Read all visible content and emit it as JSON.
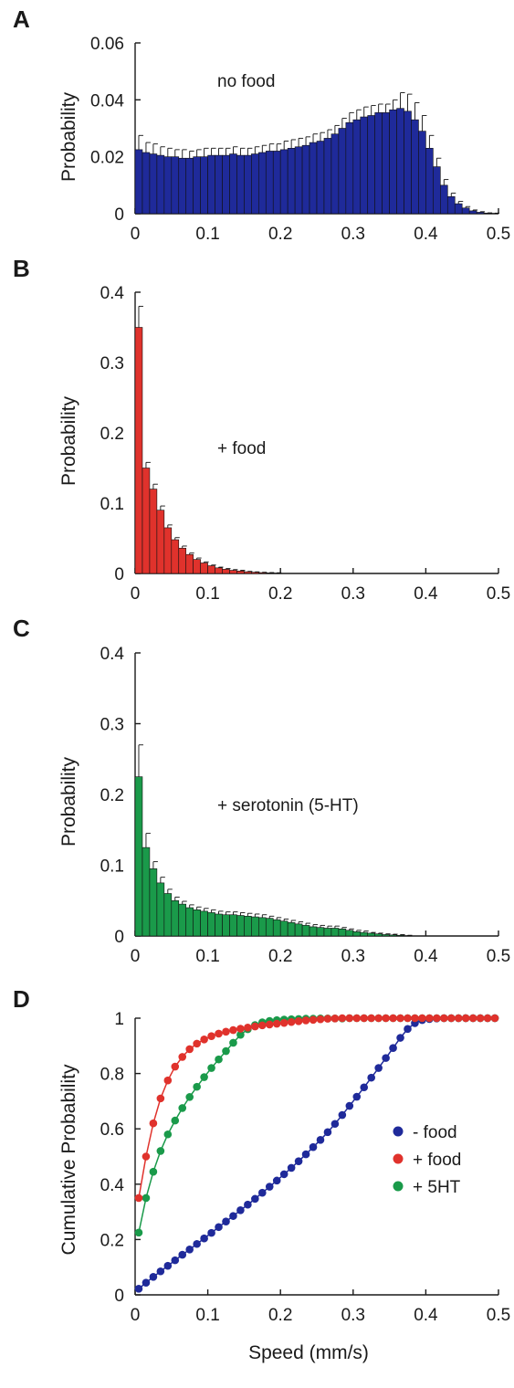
{
  "figure": {
    "xlabel": "Speed (mm/s)"
  },
  "chart_data": [
    {
      "panel": "A",
      "type": "bar",
      "annotation": "no food",
      "ylabel": "Probability",
      "xlabel": "",
      "xlim": [
        0,
        0.5
      ],
      "ylim": [
        0,
        0.06
      ],
      "xticks": [
        "0",
        "0.1",
        "0.2",
        "0.3",
        "0.4",
        "0.5"
      ],
      "yticks": [
        "0",
        "0.02",
        "0.04",
        "0.06"
      ],
      "bin_width": 0.01,
      "color": "#1f2a9a",
      "values": [
        0.0225,
        0.0215,
        0.021,
        0.0205,
        0.02,
        0.02,
        0.0195,
        0.0195,
        0.02,
        0.02,
        0.0205,
        0.0205,
        0.0205,
        0.021,
        0.0205,
        0.0205,
        0.021,
        0.0215,
        0.022,
        0.022,
        0.0225,
        0.023,
        0.0235,
        0.024,
        0.025,
        0.0255,
        0.0265,
        0.028,
        0.03,
        0.032,
        0.033,
        0.034,
        0.0345,
        0.0355,
        0.0355,
        0.0365,
        0.037,
        0.036,
        0.033,
        0.029,
        0.023,
        0.0165,
        0.01,
        0.006,
        0.0035,
        0.002,
        0.001,
        0.0005,
        0.0002,
        0.0001
      ],
      "errors": [
        0.005,
        0.0035,
        0.0035,
        0.003,
        0.003,
        0.0025,
        0.003,
        0.0025,
        0.0025,
        0.003,
        0.0025,
        0.0025,
        0.0025,
        0.0025,
        0.0025,
        0.0025,
        0.0025,
        0.0025,
        0.0025,
        0.0025,
        0.003,
        0.003,
        0.003,
        0.003,
        0.003,
        0.003,
        0.003,
        0.003,
        0.0035,
        0.0035,
        0.0035,
        0.0035,
        0.0035,
        0.003,
        0.003,
        0.0035,
        0.0055,
        0.006,
        0.006,
        0.0055,
        0.0045,
        0.003,
        0.002,
        0.0012,
        0.0008,
        0.0005,
        0.0003,
        0.0002,
        0.0001,
        0.0001
      ]
    },
    {
      "panel": "B",
      "type": "bar",
      "annotation": "+ food",
      "ylabel": "Probability",
      "xlabel": "",
      "xlim": [
        0,
        0.5
      ],
      "ylim": [
        0,
        0.4
      ],
      "xticks": [
        "0",
        "0.1",
        "0.2",
        "0.3",
        "0.4",
        "0.5"
      ],
      "yticks": [
        "0",
        "0.1",
        "0.2",
        "0.3",
        "0.4"
      ],
      "bin_width": 0.01,
      "color": "#e0322c",
      "values": [
        0.35,
        0.15,
        0.12,
        0.09,
        0.065,
        0.048,
        0.036,
        0.027,
        0.02,
        0.015,
        0.011,
        0.008,
        0.006,
        0.0045,
        0.0035,
        0.0025,
        0.0018,
        0.0012,
        0.0008,
        0.0005,
        0,
        0,
        0,
        0,
        0,
        0,
        0,
        0,
        0,
        0,
        0,
        0,
        0,
        0,
        0,
        0,
        0,
        0,
        0,
        0,
        0,
        0,
        0,
        0,
        0,
        0,
        0,
        0,
        0,
        0
      ],
      "errors": [
        0.03,
        0.008,
        0.007,
        0.006,
        0.004,
        0.003,
        0.003,
        0.002,
        0.002,
        0.0015,
        0.001,
        0.001,
        0.001,
        0.001,
        0.001,
        0.0005,
        0.0005,
        0.0005,
        0.0005,
        0.0005,
        0,
        0,
        0,
        0,
        0,
        0,
        0,
        0,
        0,
        0,
        0,
        0,
        0,
        0,
        0,
        0,
        0,
        0,
        0,
        0,
        0,
        0,
        0,
        0,
        0,
        0,
        0,
        0,
        0,
        0
      ]
    },
    {
      "panel": "C",
      "type": "bar",
      "annotation": "+ serotonin (5-HT)",
      "ylabel": "Probability",
      "xlabel": "",
      "xlim": [
        0,
        0.5
      ],
      "ylim": [
        0,
        0.4
      ],
      "xticks": [
        "0",
        "0.1",
        "0.2",
        "0.3",
        "0.4",
        "0.5"
      ],
      "yticks": [
        "0",
        "0.1",
        "0.2",
        "0.3",
        "0.4"
      ],
      "bin_width": 0.01,
      "color": "#1a9a4a",
      "values": [
        0.225,
        0.125,
        0.095,
        0.075,
        0.06,
        0.05,
        0.045,
        0.04,
        0.037,
        0.035,
        0.033,
        0.031,
        0.03,
        0.03,
        0.029,
        0.028,
        0.027,
        0.026,
        0.025,
        0.023,
        0.021,
        0.019,
        0.017,
        0.015,
        0.013,
        0.012,
        0.011,
        0.011,
        0.01,
        0.008,
        0.006,
        0.005,
        0.004,
        0.003,
        0.002,
        0.0015,
        0.001,
        0.0005,
        0,
        0,
        0,
        0,
        0,
        0,
        0,
        0,
        0,
        0,
        0,
        0
      ],
      "errors": [
        0.045,
        0.02,
        0.01,
        0.008,
        0.006,
        0.005,
        0.004,
        0.004,
        0.004,
        0.004,
        0.004,
        0.004,
        0.004,
        0.004,
        0.004,
        0.004,
        0.004,
        0.004,
        0.003,
        0.003,
        0.003,
        0.003,
        0.003,
        0.003,
        0.003,
        0.003,
        0.003,
        0.003,
        0.002,
        0.002,
        0.002,
        0.002,
        0.001,
        0.001,
        0.001,
        0.001,
        0.001,
        0.0005,
        0,
        0,
        0,
        0,
        0,
        0,
        0,
        0,
        0,
        0,
        0,
        0
      ]
    },
    {
      "panel": "D",
      "type": "line",
      "ylabel": "Cumulative Probability",
      "xlabel": "Speed (mm/s)",
      "xlim": [
        0,
        0.5
      ],
      "ylim": [
        0,
        1
      ],
      "xticks": [
        "0",
        "0.1",
        "0.2",
        "0.3",
        "0.4",
        "0.5"
      ],
      "yticks": [
        "0",
        "0.2",
        "0.4",
        "0.6",
        "0.8",
        "1"
      ],
      "legend_position": "right",
      "x": [
        0.005,
        0.015,
        0.025,
        0.035,
        0.045,
        0.055,
        0.065,
        0.075,
        0.085,
        0.095,
        0.105,
        0.115,
        0.125,
        0.135,
        0.145,
        0.155,
        0.165,
        0.175,
        0.185,
        0.195,
        0.205,
        0.215,
        0.225,
        0.235,
        0.245,
        0.255,
        0.265,
        0.275,
        0.285,
        0.295,
        0.305,
        0.315,
        0.325,
        0.335,
        0.345,
        0.355,
        0.365,
        0.375,
        0.385,
        0.395,
        0.405,
        0.415,
        0.425,
        0.435,
        0.445,
        0.455,
        0.465,
        0.475,
        0.485,
        0.495
      ],
      "series": [
        {
          "name": "-  food",
          "color": "#1f2a9a",
          "values": [
            0.022,
            0.044,
            0.065,
            0.085,
            0.105,
            0.125,
            0.145,
            0.164,
            0.184,
            0.204,
            0.224,
            0.245,
            0.265,
            0.285,
            0.306,
            0.326,
            0.347,
            0.369,
            0.391,
            0.413,
            0.436,
            0.459,
            0.483,
            0.508,
            0.534,
            0.56,
            0.588,
            0.618,
            0.65,
            0.683,
            0.716,
            0.75,
            0.785,
            0.82,
            0.856,
            0.892,
            0.929,
            0.961,
            0.982,
            0.993,
            0.997,
            0.999,
            1.0,
            1.0,
            1.0,
            1.0,
            1.0,
            1.0,
            1.0,
            1.0
          ]
        },
        {
          "name": "+ food",
          "color": "#e0322c",
          "values": [
            0.35,
            0.5,
            0.62,
            0.71,
            0.775,
            0.825,
            0.86,
            0.888,
            0.908,
            0.923,
            0.935,
            0.944,
            0.951,
            0.957,
            0.962,
            0.966,
            0.97,
            0.974,
            0.977,
            0.98,
            0.983,
            0.986,
            0.989,
            0.992,
            0.994,
            0.996,
            0.998,
            0.999,
            1.0,
            1.0,
            1.0,
            1.0,
            1.0,
            1.0,
            1.0,
            1.0,
            1.0,
            1.0,
            1.0,
            1.0,
            1.0,
            1.0,
            1.0,
            1.0,
            1.0,
            1.0,
            1.0,
            1.0,
            1.0,
            1.0
          ]
        },
        {
          "name": "+ 5HT",
          "color": "#1a9a4a",
          "values": [
            0.225,
            0.35,
            0.445,
            0.52,
            0.58,
            0.63,
            0.675,
            0.715,
            0.752,
            0.787,
            0.82,
            0.851,
            0.881,
            0.911,
            0.94,
            0.96,
            0.975,
            0.985,
            0.99,
            0.993,
            0.995,
            0.996,
            0.997,
            0.998,
            0.998,
            0.999,
            0.999,
            0.999,
            0.999,
            1.0,
            1.0,
            1.0,
            1.0,
            1.0,
            1.0,
            1.0,
            1.0,
            1.0,
            1.0,
            1.0,
            1.0,
            1.0,
            1.0,
            1.0,
            1.0,
            1.0,
            1.0,
            1.0,
            1.0,
            1.0
          ]
        }
      ]
    }
  ]
}
